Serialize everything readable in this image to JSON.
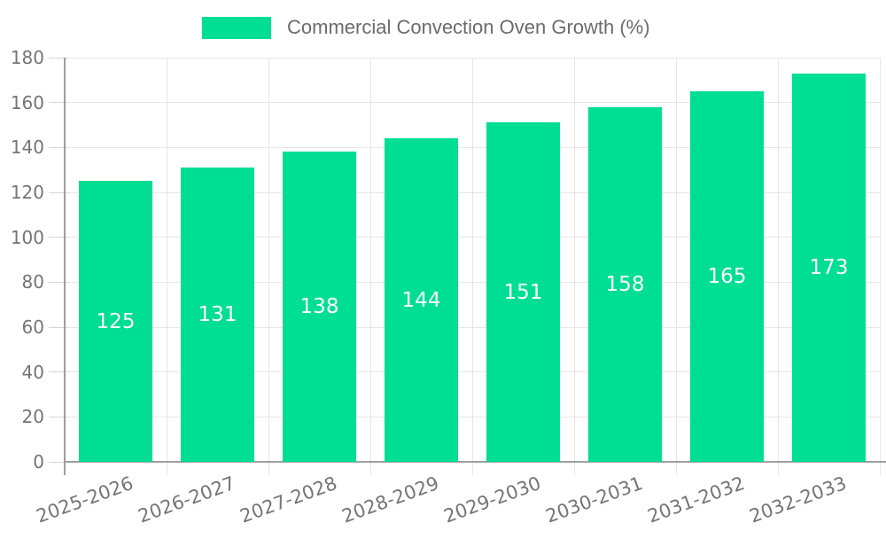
{
  "chart_data": {
    "type": "bar",
    "title": "Commercial Convection Oven Growth (%)",
    "legend_label": "Commercial Convection Oven Growth (%)",
    "legend_position": "top",
    "categories": [
      "2025-2026",
      "2026-2027",
      "2027-2028",
      "2028-2029",
      "2029-2030",
      "2030-2031",
      "2031-2032",
      "2032-2033"
    ],
    "values": [
      125,
      131,
      138,
      144,
      151,
      158,
      165,
      173
    ],
    "bar_value_labels": [
      "125",
      "131",
      "138",
      "144",
      "151",
      "158",
      "165",
      "173"
    ],
    "xlabel": "",
    "ylabel": "",
    "ylim": [
      0,
      180
    ],
    "ytick_step": 20,
    "yticks": [
      0,
      20,
      40,
      60,
      80,
      100,
      120,
      140,
      160,
      180
    ],
    "grid": true,
    "x_tick_rotation_deg": -20
  },
  "colors": {
    "bar": "#00DE94",
    "bar_label_text": "#ffffff",
    "axis_text": "#757575",
    "legend_text": "#6b6b6b",
    "gridline": "#e6e6e6",
    "tick": "#d6d6d6",
    "axis_line": "#9e9e9e",
    "background": "#ffffff"
  }
}
